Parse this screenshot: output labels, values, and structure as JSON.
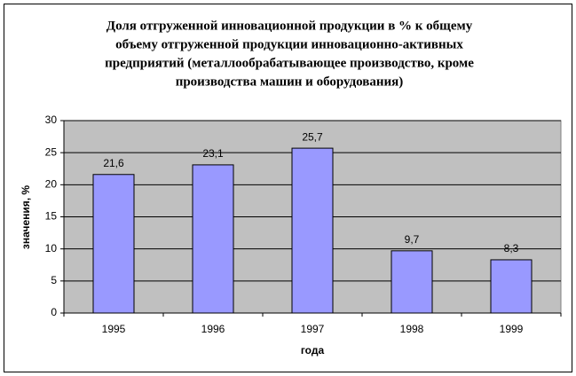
{
  "chart_data": {
    "type": "bar",
    "title": [
      "Доля отгруженной инновационной продукции в % к общему",
      "объему  отгруженной продукции инновационно-активных",
      "предприятий (металлообрабатывающее производство, кроме",
      "производства машин и оборудования)"
    ],
    "x_label": "года",
    "y_label": "значения, %",
    "categories": [
      "1995",
      "1996",
      "1997",
      "1998",
      "1999"
    ],
    "values": [
      21.6,
      23.1,
      25.7,
      9.7,
      8.3
    ],
    "value_labels": [
      "21,6",
      "23,1",
      "25,7",
      "9,7",
      "8,3"
    ],
    "color": "#9999ff",
    "ylim": [
      0,
      30
    ],
    "yticks": [
      0,
      5,
      10,
      15,
      20,
      25,
      30
    ],
    "grid": true
  }
}
